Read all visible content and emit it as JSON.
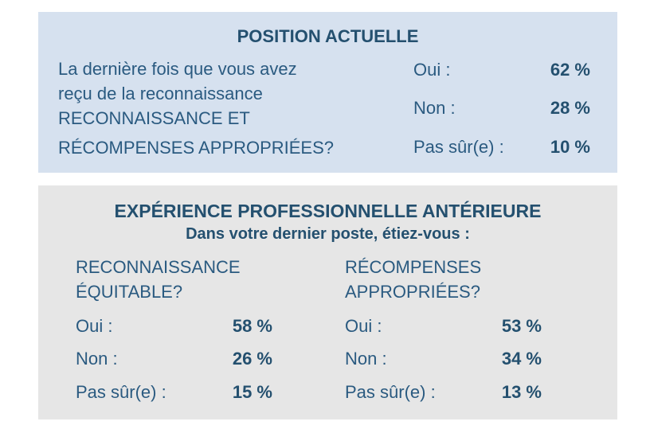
{
  "current": {
    "title": "POSITION ACTUELLE",
    "question_lines": [
      "La dernière fois que vous avez",
      "reçu de la reconnaissance",
      "RECONNAISSANCE ET",
      "RÉCOMPENSES APPROPRIÉES?"
    ],
    "answers": [
      {
        "label": "Oui :",
        "value": "62 %"
      },
      {
        "label": "Non :",
        "value": "28 %"
      },
      {
        "label": "Pas sûr(e) :",
        "value": "10 %"
      }
    ]
  },
  "previous": {
    "title": "EXPÉRIENCE PROFESSIONNELLE ANTÉRIEURE",
    "subtitle": "Dans votre dernier poste, étiez-vous :",
    "left": {
      "heading_lines": [
        "RECONNAISSANCE",
        "ÉQUITABLE?"
      ],
      "answers": [
        {
          "label": "Oui :",
          "value": "58 %"
        },
        {
          "label": "Non :",
          "value": "26 %"
        },
        {
          "label": "Pas sûr(e) :",
          "value": "15 %"
        }
      ]
    },
    "right": {
      "heading_lines": [
        "RÉCOMPENSES",
        "APPROPRIÉES?"
      ],
      "answers": [
        {
          "label": "Oui :",
          "value": "53 %"
        },
        {
          "label": "Non :",
          "value": "34 %"
        },
        {
          "label": "Pas sûr(e) :",
          "value": "13 %"
        }
      ]
    }
  },
  "colors": {
    "panel_top_bg": "#d6e1ef",
    "panel_bottom_bg": "#e6e6e6",
    "text": "#2a5a80",
    "text_bold": "#24506f"
  }
}
